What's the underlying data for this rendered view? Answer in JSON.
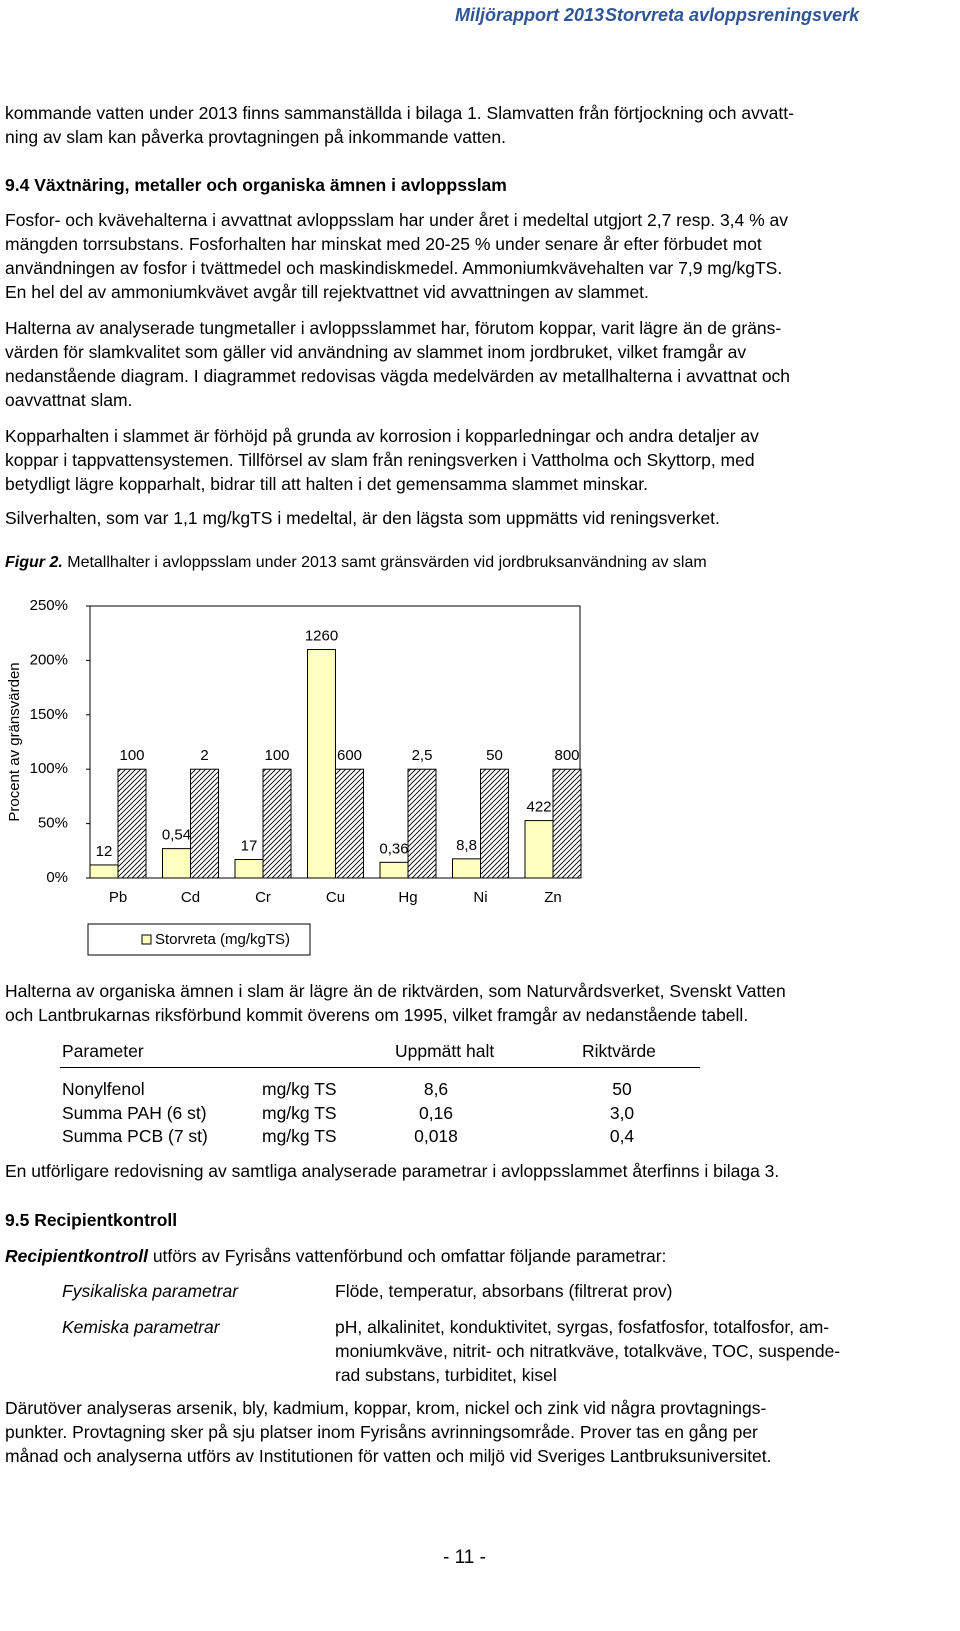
{
  "header": {
    "left": "Miljörapport 2013",
    "right": "Storvreta avloppsreningsverk"
  },
  "intro": [
    "kommande vatten under 2013 finns sammanställda i bilaga 1. Slamvatten från förtjockning och avvatt-",
    "ning av slam kan påverka provtagningen på inkommande vatten."
  ],
  "section_9_4": {
    "heading": "9.4 Växtnäring, metaller och organiska ämnen i avloppsslam",
    "paragraphs": [
      [
        "Fosfor- och kvävehalterna i avvattnat avloppsslam har under året i medeltal utgjort 2,7 resp. 3,4 % av",
        "mängden torrsubstans. Fosforhalten har minskat med 20-25 % under senare år efter förbudet mot",
        "användningen av fosfor i tvättmedel och maskindiskmedel. Ammoniumkvävehalten var 7,9 mg/kgTS.",
        "En hel del av ammoniumkvävet avgår till rejektvattnet vid avvattningen av slammet."
      ],
      [
        "Halterna av analyserade tungmetaller i avloppsslammet har, förutom koppar, varit lägre än de gräns-",
        "värden för slamkvalitet som gäller vid användning av slammet inom jordbruket, vilket framgår av",
        "nedanstående diagram. I diagrammet redovisas vägda medelvärden av metallhalterna i avvattnat och",
        "oavvattnat slam."
      ],
      [
        "Kopparhalten i slammet är förhöjd på grunda av korrosion i kopparledningar och andra detaljer av",
        "koppar i tappvattensystemen. Tillförsel av slam från reningsverken i Vattholma och Skyttorp, med",
        "betydligt lägre kopparhalt, bidrar till att halten i det gemensamma slammet minskar."
      ],
      [
        "Silverhalten, som var 1,1 mg/kgTS i medeltal, är den lägsta som uppmätts vid reningsverket."
      ]
    ]
  },
  "figure": {
    "label": "Figur 2.",
    "caption": "Metallhalter i avloppsslam under 2013 samt gränsvärden vid jordbruksanvändning av slam"
  },
  "chart_data": {
    "type": "bar",
    "y_label": "Procent av gränsvärden",
    "categories": [
      "Pb",
      "Cd",
      "Cr",
      "Cu",
      "Hg",
      "Ni",
      "Zn"
    ],
    "series": [
      {
        "name": "Storvreta (mg/kgTS)",
        "color": "#ffffc0",
        "values": [
          12,
          27,
          17,
          210,
          14.4,
          17.6,
          52.75
        ],
        "labels": [
          "12",
          "0,54",
          "17",
          "1260",
          "0,36",
          "8,8",
          "422"
        ]
      },
      {
        "pattern": "hatch",
        "values": [
          100,
          100,
          100,
          100,
          100,
          100,
          100
        ],
        "labels": [
          "100",
          "2",
          "100",
          "600",
          "2,5",
          "50",
          "800"
        ]
      }
    ],
    "ylim": [
      0,
      250
    ],
    "yticks": [
      {
        "value": 0,
        "label": "0%"
      },
      {
        "value": 50,
        "label": "50%"
      },
      {
        "value": 100,
        "label": "100%"
      },
      {
        "value": 150,
        "label": "150%"
      },
      {
        "value": 200,
        "label": "200%"
      },
      {
        "value": 250,
        "label": "250%"
      }
    ],
    "grid": false,
    "legend": "bottom"
  },
  "after_chart": [
    "Halterna av organiska ämnen i slam är lägre än de riktvärden, som Naturvårdsverket, Svenskt Vatten",
    "och Lantbrukarnas riksförbund kommit överens om 1995, vilket framgår av nedanstående tabell."
  ],
  "table": {
    "header": [
      "Parameter",
      "Uppmätt halt",
      "Riktvärde"
    ],
    "rows": [
      [
        "Nonylfenol",
        "mg/kg TS",
        "8,6",
        "50"
      ],
      [
        "Summa PAH (6 st)",
        "mg/kg TS",
        "0,16",
        "3,0"
      ],
      [
        "Summa PCB (7 st)",
        "mg/kg TS",
        "0,018",
        "0,4"
      ]
    ]
  },
  "after_table": [
    "En utförligare redovisning av samtliga analyserade parametrar i avloppsslammet återfinns i bilaga 3."
  ],
  "section_9_5": {
    "heading": "9.5 Recipientkontroll",
    "intro_bold": "Recipientkontroll",
    "intro_rest": "utförs av Fyrisåns vattenförbund och omfattar följande parametrar:",
    "parameters": [
      {
        "group": "Fysikaliska parametrar",
        "items": [
          "Flöde, temperatur, absorbans (filtrerat prov)"
        ]
      },
      {
        "group": "Kemiska parametrar",
        "items": [
          "pH, alkalinitet, konduktivitet, syrgas, fosfatfosfor, totalfosfor, am-",
          "moniumkväve, nitrit- och nitratkväve, totalkväve, TOC, suspende-",
          "rad substans, turbiditet, kisel"
        ]
      }
    ],
    "closing": [
      "Därutöver analyseras arsenik, bly, kadmium, koppar, krom, nickel och zink vid några provtagnings-",
      "punkter. Provtagning sker på sju platser inom Fyrisåns avrinningsområde. Prover tas en gång per",
      "månad och analyserna utförs av Institutionen för vatten och miljö vid Sveriges Lantbruksuniversitet."
    ]
  },
  "footer": "- 11 -"
}
